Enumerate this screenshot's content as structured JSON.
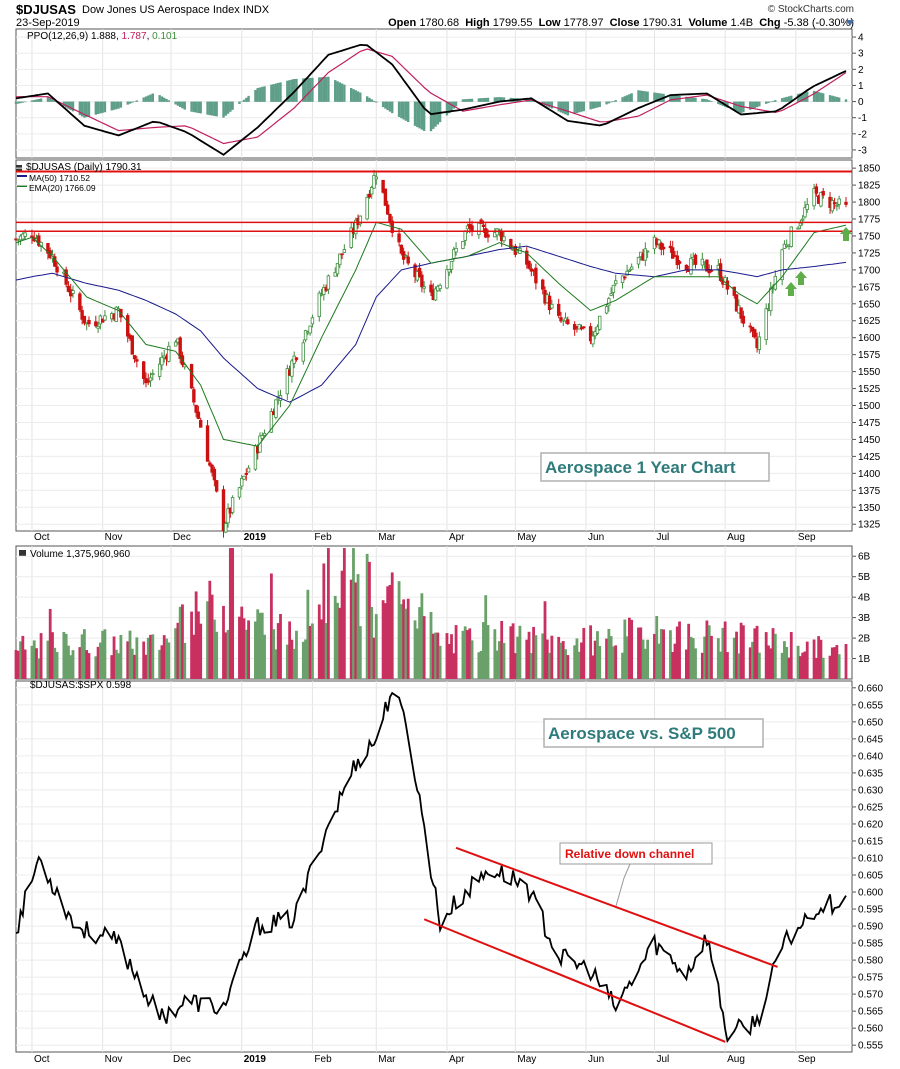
{
  "header": {
    "symbol": "$DJUSAS",
    "name": "Dow Jones US Aerospace Index",
    "exchange": "INDX",
    "date": "23-Sep-2019",
    "brand": "© StockCharts.com",
    "open_label": "Open",
    "open": "1780.68",
    "high_label": "High",
    "high": "1799.55",
    "low_label": "Low",
    "low": "1778.97",
    "close_label": "Close",
    "close": "1790.31",
    "volume_label": "Volume",
    "volume": "1.4B",
    "chg_label": "Chg",
    "chg": "-5.38 (-0.30%)",
    "arrow_icon": "triangle-down-icon"
  },
  "colors": {
    "up": "#3f8f3f",
    "down": "#cc1111",
    "vol_up": "#6aa06a",
    "vol_down": "#c83060",
    "ma50": "#1a1a8c",
    "ema20": "#1e7a1e",
    "ppo": "#000000",
    "signal": "#c02060",
    "hist": "#5f9f8a",
    "resistance": "#e01010",
    "annotation": "#2f7b7b",
    "green_arrow": "#5fae4a"
  },
  "month_labels": [
    "Oct",
    "Nov",
    "Dec",
    "2019",
    "Feb",
    "Mar",
    "Apr",
    "May",
    "Jun",
    "Jul",
    "Aug",
    "Sep"
  ],
  "panels": {
    "ppo": {
      "label": "PPO(12,26,9)",
      "ppo_value": "1.888",
      "signal_value": "1.787",
      "hist_value": "0.101",
      "yticks": [
        "4",
        "3",
        "2",
        "1",
        "0",
        "-1",
        "-2",
        "-3"
      ]
    },
    "price": {
      "label": "$DJUSAS (Daily) 1790.31",
      "ma_label": "MA(50) 1710.52",
      "ema_label": "EMA(20) 1766.09",
      "yticks": [
        "1850",
        "1825",
        "1800",
        "1775",
        "1750",
        "1725",
        "1700",
        "1675",
        "1650",
        "1625",
        "1600",
        "1575",
        "1550",
        "1525",
        "1500",
        "1475",
        "1450",
        "1425",
        "1400",
        "1375",
        "1350",
        "1325"
      ],
      "annotation": "Aerospace 1 Year Chart"
    },
    "volume": {
      "label": "Volume 1,375,960,960",
      "yticks": [
        "6B",
        "5B",
        "4B",
        "3B",
        "2B",
        "1B"
      ]
    },
    "ratio": {
      "label": "$DJUSAS:$SPX 0.598",
      "yticks": [
        "0.660",
        "0.655",
        "0.650",
        "0.645",
        "0.640",
        "0.635",
        "0.630",
        "0.625",
        "0.620",
        "0.615",
        "0.610",
        "0.605",
        "0.600",
        "0.595",
        "0.590",
        "0.585",
        "0.580",
        "0.575",
        "0.570",
        "0.565",
        "0.560",
        "0.555"
      ],
      "annotation": "Aerospace vs. S&P 500",
      "channel_label": "Relative down channel"
    }
  },
  "chart_data": [
    {
      "type": "line",
      "title": "PPO(12,26,9)",
      "x": [
        "2018-09-24",
        "2018-10-08",
        "2018-10-24",
        "2018-11-08",
        "2018-11-24",
        "2018-12-08",
        "2018-12-24",
        "2019-01-08",
        "2019-01-24",
        "2019-02-08",
        "2019-02-24",
        "2019-03-08",
        "2019-03-24",
        "2019-04-08",
        "2019-04-24",
        "2019-05-08",
        "2019-05-24",
        "2019-06-08",
        "2019-06-24",
        "2019-07-08",
        "2019-07-24",
        "2019-08-08",
        "2019-08-24",
        "2019-09-08",
        "2019-09-23"
      ],
      "series": [
        {
          "name": "PPO",
          "values": [
            0.2,
            0.5,
            -1.5,
            -2.1,
            -1.2,
            -1.9,
            -3.3,
            -1.6,
            0.6,
            2.9,
            3.6,
            2.3,
            -0.8,
            -0.5,
            0.0,
            0.2,
            -1.2,
            -1.5,
            -0.4,
            0.4,
            0.5,
            -0.8,
            -0.6,
            0.9,
            1.9
          ]
        },
        {
          "name": "Signal",
          "values": [
            0.3,
            0.3,
            -0.8,
            -1.8,
            -1.6,
            -1.5,
            -2.6,
            -2.2,
            -0.4,
            1.8,
            3.3,
            2.8,
            0.6,
            -0.6,
            -0.2,
            0.1,
            -0.6,
            -1.3,
            -0.9,
            0.1,
            0.4,
            -0.3,
            -0.7,
            0.4,
            1.8
          ]
        }
      ],
      "ylim": [
        -3.5,
        4.5
      ]
    },
    {
      "type": "line",
      "title": "$DJUSAS (Daily) 1790.31",
      "x": [
        "2018-09-24",
        "2018-10-01",
        "2018-10-10",
        "2018-10-25",
        "2018-11-08",
        "2018-11-20",
        "2018-12-03",
        "2018-12-14",
        "2018-12-24",
        "2019-01-08",
        "2019-01-22",
        "2019-02-05",
        "2019-02-20",
        "2019-03-01",
        "2019-03-12",
        "2019-03-25",
        "2019-04-10",
        "2019-04-24",
        "2019-05-06",
        "2019-05-20",
        "2019-06-03",
        "2019-06-14",
        "2019-07-01",
        "2019-07-15",
        "2019-07-29",
        "2019-08-07",
        "2019-08-15",
        "2019-08-26",
        "2019-09-09",
        "2019-09-23"
      ],
      "series": [
        {
          "name": "Close",
          "values": [
            1745,
            1755,
            1720,
            1620,
            1640,
            1530,
            1600,
            1470,
            1323,
            1440,
            1555,
            1665,
            1765,
            1845,
            1720,
            1660,
            1760,
            1755,
            1710,
            1625,
            1600,
            1680,
            1740,
            1710,
            1700,
            1640,
            1585,
            1730,
            1810,
            1790
          ]
        },
        {
          "name": "MA(50)",
          "values": [
            1685,
            1690,
            1695,
            1680,
            1670,
            1655,
            1635,
            1610,
            1570,
            1525,
            1505,
            1530,
            1590,
            1660,
            1700,
            1710,
            1720,
            1730,
            1735,
            1720,
            1705,
            1695,
            1690,
            1700,
            1700,
            1695,
            1690,
            1700,
            1705,
            1711
          ]
        },
        {
          "name": "EMA(20)",
          "values": [
            1740,
            1748,
            1720,
            1660,
            1640,
            1590,
            1580,
            1530,
            1450,
            1440,
            1500,
            1600,
            1700,
            1770,
            1760,
            1710,
            1720,
            1740,
            1725,
            1680,
            1640,
            1655,
            1690,
            1690,
            1690,
            1665,
            1650,
            1690,
            1755,
            1766
          ]
        }
      ],
      "resistance_lines": [
        1845,
        1770,
        1757
      ],
      "ylim": [
        1315,
        1862
      ]
    },
    {
      "type": "bar",
      "title": "Volume 1,375,960,960",
      "x": [
        "2018-09-24",
        "2018-10-24",
        "2018-11-24",
        "2018-12-20",
        "2019-01-24",
        "2019-02-12",
        "2019-02-28",
        "2019-03-12",
        "2019-03-28",
        "2019-04-24",
        "2019-05-24",
        "2019-06-24",
        "2019-07-24",
        "2019-08-24",
        "2019-09-23"
      ],
      "values": [
        1.6,
        2.0,
        1.8,
        4.0,
        2.2,
        5.9,
        2.6,
        5.6,
        2.0,
        2.2,
        1.9,
        2.4,
        2.3,
        2.0,
        1.4
      ],
      "ylim": [
        0,
        6.5
      ]
    },
    {
      "type": "line",
      "title": "$DJUSAS:$SPX 0.598",
      "x": [
        "2018-09-24",
        "2018-10-04",
        "2018-10-20",
        "2018-11-08",
        "2018-11-26",
        "2018-12-08",
        "2018-12-24",
        "2019-01-08",
        "2019-01-24",
        "2019-02-05",
        "2019-02-20",
        "2019-03-01",
        "2019-03-08",
        "2019-03-15",
        "2019-03-29",
        "2019-04-05",
        "2019-04-20",
        "2019-05-06",
        "2019-05-20",
        "2019-06-03",
        "2019-06-14",
        "2019-07-01",
        "2019-07-15",
        "2019-07-24",
        "2019-08-02",
        "2019-08-15",
        "2019-08-26",
        "2019-09-09",
        "2019-09-23"
      ],
      "values": [
        0.589,
        0.61,
        0.59,
        0.585,
        0.563,
        0.568,
        0.566,
        0.59,
        0.592,
        0.615,
        0.638,
        0.645,
        0.66,
        0.647,
        0.591,
        0.597,
        0.607,
        0.602,
        0.581,
        0.577,
        0.566,
        0.585,
        0.576,
        0.587,
        0.558,
        0.562,
        0.584,
        0.595,
        0.598
      ],
      "channel_upper": [
        [
          "2019-04-05",
          0.613
        ],
        [
          "2019-08-24",
          0.578
        ]
      ],
      "channel_lower": [
        [
          "2019-03-22",
          0.592
        ],
        [
          "2019-08-01",
          0.556
        ]
      ],
      "ylim": [
        0.553,
        0.662
      ]
    }
  ]
}
